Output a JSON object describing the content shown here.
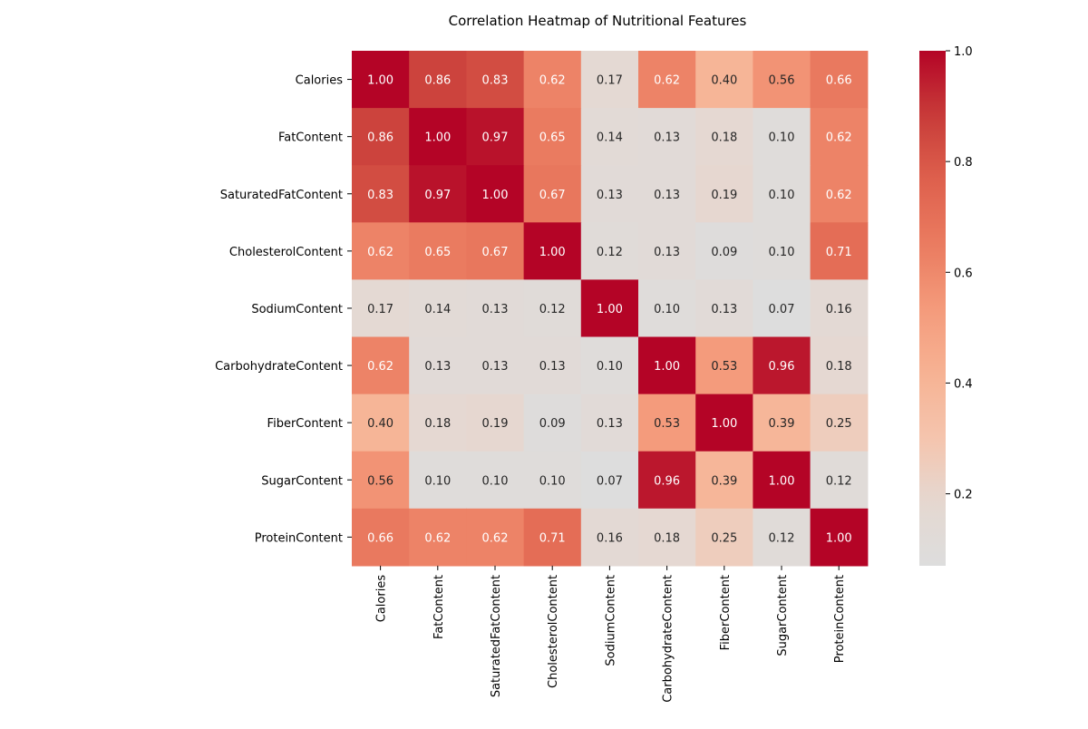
{
  "chart_data": {
    "type": "heatmap",
    "title": "Correlation Heatmap of Nutritional Features",
    "x_labels": [
      "Calories",
      "FatContent",
      "SaturatedFatContent",
      "CholesterolContent",
      "SodiumContent",
      "CarbohydrateContent",
      "FiberContent",
      "SugarContent",
      "ProteinContent"
    ],
    "y_labels": [
      "Calories",
      "FatContent",
      "SaturatedFatContent",
      "CholesterolContent",
      "SodiumContent",
      "CarbohydrateContent",
      "FiberContent",
      "SugarContent",
      "ProteinContent"
    ],
    "values": [
      [
        1.0,
        0.86,
        0.83,
        0.62,
        0.17,
        0.62,
        0.4,
        0.56,
        0.66
      ],
      [
        0.86,
        1.0,
        0.97,
        0.65,
        0.14,
        0.13,
        0.18,
        0.1,
        0.62
      ],
      [
        0.83,
        0.97,
        1.0,
        0.67,
        0.13,
        0.13,
        0.19,
        0.1,
        0.62
      ],
      [
        0.62,
        0.65,
        0.67,
        1.0,
        0.12,
        0.13,
        0.09,
        0.1,
        0.71
      ],
      [
        0.17,
        0.14,
        0.13,
        0.12,
        1.0,
        0.1,
        0.13,
        0.07,
        0.16
      ],
      [
        0.62,
        0.13,
        0.13,
        0.13,
        0.1,
        1.0,
        0.53,
        0.96,
        0.18
      ],
      [
        0.4,
        0.18,
        0.19,
        0.09,
        0.13,
        0.53,
        1.0,
        0.39,
        0.25
      ],
      [
        0.56,
        0.1,
        0.1,
        0.1,
        0.07,
        0.96,
        0.39,
        1.0,
        0.12
      ],
      [
        0.66,
        0.62,
        0.62,
        0.71,
        0.16,
        0.18,
        0.25,
        0.12,
        1.0
      ]
    ],
    "value_format": "0.00",
    "colormap": "coolwarm",
    "color_range": [
      0.07,
      1.0
    ],
    "colorbar": {
      "ticks": [
        0.2,
        0.4,
        0.6,
        0.8,
        1.0
      ],
      "tick_labels": [
        "0.2",
        "0.4",
        "0.6",
        "0.8",
        "1.0"
      ],
      "placement": "right"
    }
  }
}
